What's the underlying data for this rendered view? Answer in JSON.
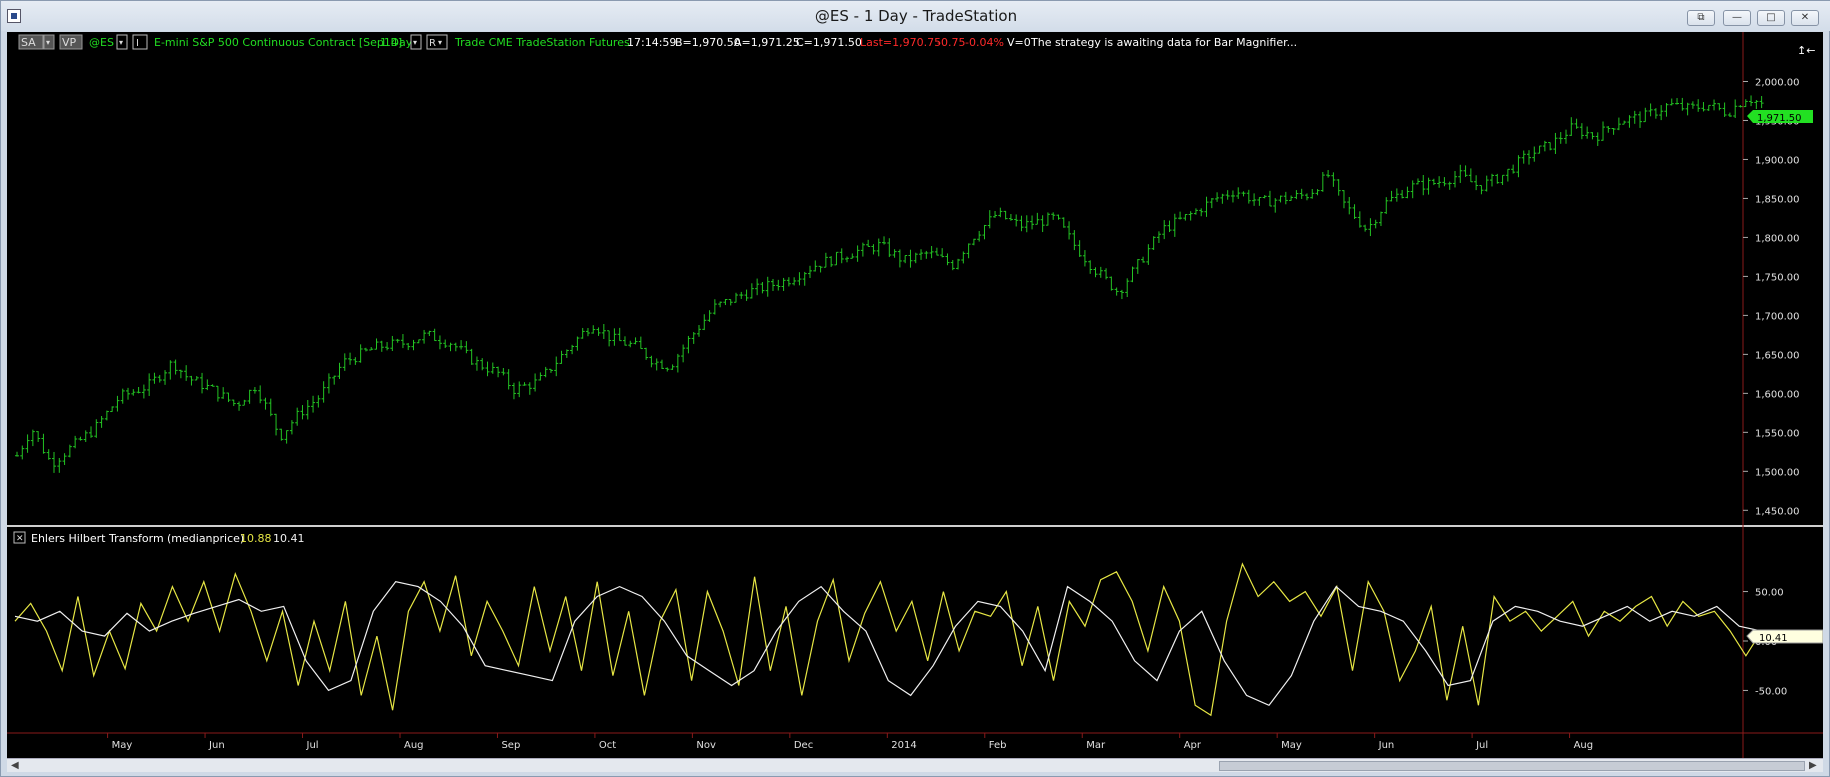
{
  "window": {
    "title": "@ES - 1 Day - TradeStation",
    "buttons": {
      "restore_doc": "⧉",
      "minimize": "—",
      "maximize": "□",
      "close": "✕"
    }
  },
  "chart_header": {
    "sa_button": "SA",
    "vp_button": "VP",
    "symbol": "@ES",
    "i_button": "I",
    "description": "E-mini S&P 500 Continuous Contract [Sep14]",
    "interval": "1 Day",
    "r_button": "R",
    "data_info": "Trade  CME  TradeStation  Futures",
    "time": "17:14:59",
    "bid": "B=1,970.50",
    "ask": "A=1,971.25",
    "close": "C=1,971.50",
    "last": "Last=1,970.75",
    "net_change": "-0.75",
    "pct_change": "-0.04%",
    "volume": "V=0",
    "message": "The strategy is awaiting data for Bar Magnifier...",
    "shift_icon": "↥←"
  },
  "price_axis": {
    "ticks": [
      "2,000.00",
      "1,950.00",
      "1,900.00",
      "1,850.00",
      "1,800.00",
      "1,750.00",
      "1,700.00",
      "1,650.00",
      "1,600.00",
      "1,550.00",
      "1,500.00",
      "1,450.00"
    ],
    "last_price_label": "1,971.50"
  },
  "indicator": {
    "close_icon": "✕",
    "name": "Ehlers Hilbert Transform",
    "input": "(medianprice)",
    "value1": "10.88",
    "value2": "10.41",
    "axis_ticks": [
      "50.00",
      "0.00",
      "-50.00"
    ],
    "current_label": "10.41"
  },
  "time_axis": {
    "labels": [
      "May",
      "Jun",
      "Jul",
      "Aug",
      "Sep",
      "Oct",
      "Nov",
      "Dec",
      "2014",
      "Feb",
      "Mar",
      "Apr",
      "May",
      "Jun",
      "Jul",
      "Aug"
    ]
  },
  "colors": {
    "background": "#000000",
    "bars": "#23c323",
    "symbol_text": "#22dd22",
    "last_red": "#ff2a2a",
    "indicator_line1": "#e6e644",
    "indicator_line2": "#f0f0f0",
    "grid_red": "#8a1a1a"
  },
  "chart_data": [
    {
      "type": "ohlc",
      "symbol": "@ES",
      "interval": "1 Day",
      "ylim": [
        1435,
        2025
      ],
      "yticks": [
        2000,
        1950,
        1900,
        1850,
        1800,
        1750,
        1700,
        1650,
        1600,
        1550,
        1500,
        1450
      ],
      "months": [
        "May",
        "Jun",
        "Jul",
        "Aug",
        "Sep",
        "Oct",
        "Nov",
        "Dec",
        "2014",
        "Feb",
        "Mar",
        "Apr",
        "May",
        "Jun",
        "Jul",
        "Aug"
      ],
      "month_closes_approx": [
        {
          "month": "May",
          "value": 1640
        },
        {
          "month": "Jun",
          "value": 1610
        },
        {
          "month": "Jul",
          "value": 1665
        },
        {
          "month": "Aug",
          "value": 1675
        },
        {
          "month": "Sep",
          "value": 1625
        },
        {
          "month": "Oct",
          "value": 1675
        },
        {
          "month": "Nov",
          "value": 1755
        },
        {
          "month": "Dec",
          "value": 1790
        },
        {
          "month": "2014",
          "value": 1830
        },
        {
          "month": "Feb",
          "value": 1775
        },
        {
          "month": "Mar",
          "value": 1855
        },
        {
          "month": "Apr",
          "value": 1860
        },
        {
          "month": "May",
          "value": 1875
        },
        {
          "month": "Jun",
          "value": 1920
        },
        {
          "month": "Jul",
          "value": 1970
        }
      ],
      "path_points": [
        {
          "m": 0.0,
          "v": 1520
        },
        {
          "m": 0.15,
          "v": 1555
        },
        {
          "m": 0.35,
          "v": 1510
        },
        {
          "m": 0.55,
          "v": 1530
        },
        {
          "m": 0.8,
          "v": 1555
        },
        {
          "m": 1.05,
          "v": 1595
        },
        {
          "m": 1.35,
          "v": 1610
        },
        {
          "m": 1.6,
          "v": 1640
        },
        {
          "m": 1.75,
          "v": 1620
        },
        {
          "m": 2.0,
          "v": 1605
        },
        {
          "m": 2.25,
          "v": 1585
        },
        {
          "m": 2.45,
          "v": 1610
        },
        {
          "m": 2.7,
          "v": 1545
        },
        {
          "m": 2.9,
          "v": 1575
        },
        {
          "m": 3.1,
          "v": 1595
        },
        {
          "m": 3.35,
          "v": 1640
        },
        {
          "m": 3.7,
          "v": 1660
        },
        {
          "m": 4.0,
          "v": 1665
        },
        {
          "m": 4.2,
          "v": 1675
        },
        {
          "m": 4.45,
          "v": 1665
        },
        {
          "m": 4.7,
          "v": 1640
        },
        {
          "m": 4.95,
          "v": 1625
        },
        {
          "m": 5.1,
          "v": 1605
        },
        {
          "m": 5.35,
          "v": 1615
        },
        {
          "m": 5.6,
          "v": 1650
        },
        {
          "m": 5.9,
          "v": 1690
        },
        {
          "m": 6.1,
          "v": 1670
        },
        {
          "m": 6.35,
          "v": 1660
        },
        {
          "m": 6.55,
          "v": 1640
        },
        {
          "m": 6.7,
          "v": 1635
        },
        {
          "m": 6.9,
          "v": 1670
        },
        {
          "m": 7.15,
          "v": 1710
        },
        {
          "m": 7.5,
          "v": 1730
        },
        {
          "m": 7.9,
          "v": 1745
        },
        {
          "m": 8.2,
          "v": 1765
        },
        {
          "m": 8.55,
          "v": 1780
        },
        {
          "m": 8.85,
          "v": 1790
        },
        {
          "m": 9.1,
          "v": 1770
        },
        {
          "m": 9.35,
          "v": 1780
        },
        {
          "m": 9.6,
          "v": 1765
        },
        {
          "m": 9.8,
          "v": 1800
        },
        {
          "m": 10.05,
          "v": 1830
        },
        {
          "m": 10.3,
          "v": 1815
        },
        {
          "m": 10.65,
          "v": 1825
        },
        {
          "m": 10.85,
          "v": 1790
        },
        {
          "m": 11.05,
          "v": 1760
        },
        {
          "m": 11.3,
          "v": 1730
        },
        {
          "m": 11.5,
          "v": 1765
        },
        {
          "m": 11.75,
          "v": 1810
        },
        {
          "m": 12.05,
          "v": 1830
        },
        {
          "m": 12.3,
          "v": 1850
        },
        {
          "m": 12.5,
          "v": 1860
        },
        {
          "m": 12.75,
          "v": 1845
        },
        {
          "m": 13.0,
          "v": 1850
        },
        {
          "m": 13.25,
          "v": 1855
        },
        {
          "m": 13.45,
          "v": 1880
        },
        {
          "m": 13.6,
          "v": 1845
        },
        {
          "m": 13.85,
          "v": 1810
        },
        {
          "m": 14.05,
          "v": 1845
        },
        {
          "m": 14.3,
          "v": 1865
        },
        {
          "m": 14.55,
          "v": 1870
        },
        {
          "m": 14.8,
          "v": 1880
        },
        {
          "m": 15.0,
          "v": 1865
        },
        {
          "m": 15.25,
          "v": 1880
        },
        {
          "m": 15.5,
          "v": 1905
        },
        {
          "m": 15.75,
          "v": 1920
        },
        {
          "m": 15.95,
          "v": 1940
        },
        {
          "m": 16.2,
          "v": 1930
        },
        {
          "m": 16.45,
          "v": 1950
        },
        {
          "m": 16.7,
          "v": 1955
        },
        {
          "m": 16.95,
          "v": 1970
        },
        {
          "m": 17.15,
          "v": 1965
        },
        {
          "m": 17.35,
          "v": 1970
        },
        {
          "m": 17.55,
          "v": 1960
        },
        {
          "m": 17.75,
          "v": 1980
        },
        {
          "m": 17.9,
          "v": 1971
        }
      ],
      "last": 1971.5
    },
    {
      "type": "line",
      "title": "Ehlers Hilbert Transform",
      "ylim": [
        -90,
        90
      ],
      "yticks": [
        50,
        0,
        -50
      ],
      "series": [
        {
          "name": "",
          "color": "#e6e644",
          "values": [
            20,
            38,
            10,
            -30,
            45,
            -35,
            10,
            -28,
            38,
            10,
            55,
            20,
            60,
            10,
            68,
            30,
            -20,
            30,
            -45,
            20,
            -30,
            40,
            -55,
            5,
            -70,
            30,
            60,
            10,
            66,
            -15,
            40,
            10,
            -25,
            55,
            -10,
            45,
            -30,
            60,
            -35,
            30,
            -55,
            20,
            52,
            -40,
            50,
            10,
            -45,
            65,
            -30,
            35,
            -55,
            20,
            62,
            -20,
            28,
            60,
            10,
            40,
            -20,
            50,
            -10,
            30,
            25,
            50,
            -25,
            35,
            -40,
            40,
            15,
            62,
            70,
            40,
            -10,
            55,
            20,
            -65,
            -75,
            20,
            78,
            45,
            60,
            40,
            50,
            25,
            55,
            -30,
            60,
            30,
            -40,
            -10,
            35,
            -60,
            15,
            -65,
            45,
            20,
            30,
            10,
            25,
            40,
            5,
            30,
            20,
            35,
            45,
            15,
            40,
            25,
            30,
            10,
            -15,
            10
          ]
        },
        {
          "name": "",
          "color": "#f0f0f0",
          "values": [
            25,
            20,
            30,
            10,
            5,
            28,
            10,
            20,
            28,
            35,
            42,
            30,
            35,
            -20,
            -50,
            -40,
            30,
            60,
            55,
            40,
            15,
            -25,
            -30,
            -35,
            -40,
            20,
            45,
            55,
            45,
            20,
            -15,
            -30,
            -45,
            -30,
            10,
            40,
            55,
            30,
            10,
            -40,
            -55,
            -25,
            15,
            40,
            35,
            10,
            -30,
            55,
            40,
            20,
            -20,
            -40,
            10,
            30,
            -20,
            -55,
            -65,
            -35,
            20,
            55,
            35,
            30,
            20,
            -10,
            -45,
            -40,
            20,
            35,
            30,
            20,
            15,
            25,
            35,
            20,
            30,
            25,
            35,
            15,
            10
          ]
        }
      ],
      "values_shown": [
        10.88,
        10.41
      ]
    }
  ]
}
